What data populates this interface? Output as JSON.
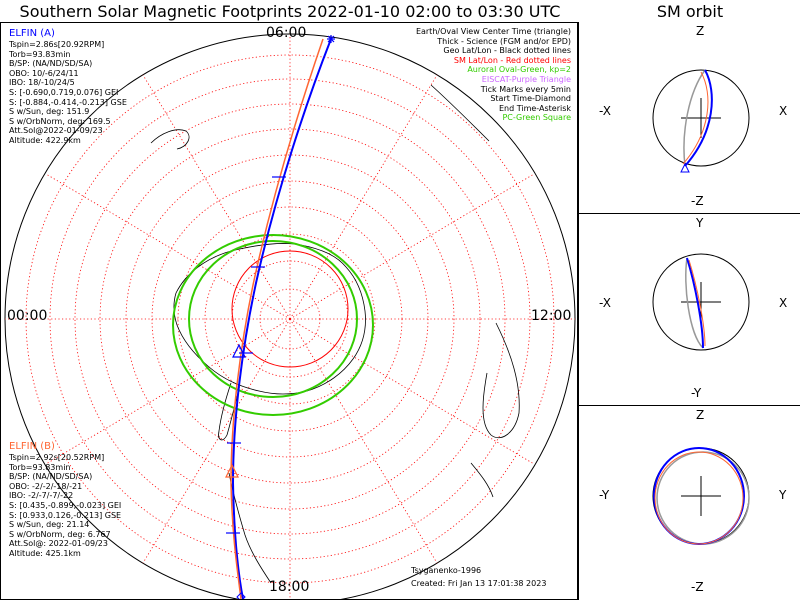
{
  "title": "Southern Solar Magnetic Footprints 2022-01-10 02:00 to 03:30 UTC",
  "orbit_title": "SM orbit",
  "mlt_labels": {
    "top": "06:00",
    "left": "00:00",
    "right": "12:00",
    "bottom": "18:00"
  },
  "elfin_a": {
    "header": "ELFIN (A)",
    "lines": [
      "Tspin=2.86s[20.92RPM]",
      "Torb=93.83min",
      "B/SP: (NA/ND/SD/SA)",
      "OBO: 10/-6/24/11",
      "IBO: 18/-10/24/5",
      "S: [-0.690,0.719,0.076] GEI",
      "S: [-0.884,-0.414,-0.213] GSE",
      "S w/Sun, deg: 151.9",
      "S w/OrbNorm, deg: 169.5",
      "Att.Sol@2022-01-09/23",
      "Altitude: 422.9km"
    ],
    "color": "#0000ff"
  },
  "elfin_b": {
    "header": "ELFIN (B)",
    "lines": [
      "Tspin=2.92s[20.52RPM]",
      "Torb=93.83min",
      "B/SP: (NA/ND/SD/SA)",
      "OBO: -2/-2/-18/-21",
      "IBO: -2/-7/-7/-22",
      "S: [0.435,-0.899,-0.023] GEI",
      "S: [0.933,0.126,-0.213] GSE",
      "S w/Sun, deg: 21.14",
      "S w/OrbNorm, deg: 6.767",
      "Att.Sol@: 2022-01-09/23",
      "Altitude: 425.1km"
    ],
    "color": "#ff6633"
  },
  "legend": [
    {
      "text": "Earth/Oval View Center Time (triangle)",
      "color": "#000000"
    },
    {
      "text": "Thick - Science (FGM and/or EPD)",
      "color": "#000000"
    },
    {
      "text": "Geo Lat/Lon - Black dotted lines",
      "color": "#000000"
    },
    {
      "text": "SM Lat/Lon - Red dotted lines",
      "color": "#ff0000"
    },
    {
      "text": "Auroral Oval-Green, kp=2",
      "color": "#33cc00"
    },
    {
      "text": "EISCAT-Purple Triangle",
      "color": "#cc66ff"
    },
    {
      "text": "Tick Marks every 5min",
      "color": "#000000"
    },
    {
      "text": "Start Time-Diamond",
      "color": "#000000"
    },
    {
      "text": "End Time-Asterisk",
      "color": "#000000"
    },
    {
      "text": "PC-Green Square",
      "color": "#33cc00"
    }
  ],
  "credit_model": "Tsyganenko-1996",
  "credit_created": "Created: Fri Jan 13 17:01:38 2023",
  "panels": [
    {
      "top": "Z",
      "bottom": "-Z",
      "left": "-X",
      "right": "X"
    },
    {
      "top": "Y",
      "bottom": "-Y",
      "left": "-X",
      "right": "X"
    },
    {
      "top": "Z",
      "bottom": "-Z",
      "left": "-Y",
      "right": "Y"
    }
  ],
  "colors": {
    "sm_grid": "#ff0000",
    "oval": "#33cc00",
    "elfin_a": "#0000ff",
    "elfin_b": "#ff6633",
    "orbit_earth": "#999999"
  }
}
